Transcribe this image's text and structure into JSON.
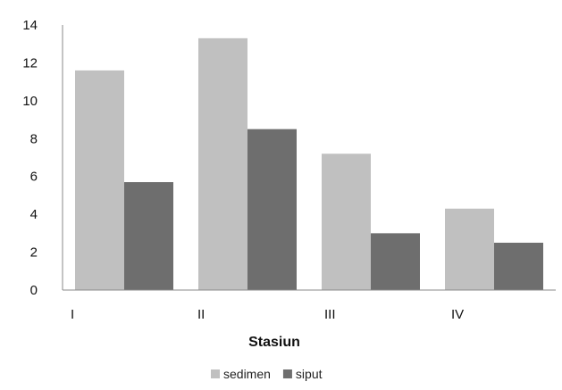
{
  "chart_data": {
    "type": "bar",
    "categories": [
      "I",
      "II",
      "III",
      "IV"
    ],
    "series": [
      {
        "name": "sedimen",
        "values": [
          11.6,
          13.3,
          7.2,
          4.3
        ],
        "color": "#c0c0c0"
      },
      {
        "name": "siput",
        "values": [
          5.7,
          8.5,
          3.0,
          2.5
        ],
        "color": "#6e6e6e"
      }
    ],
    "xlabel": "Stasiun",
    "ylabel": "",
    "ylim": [
      0,
      14
    ],
    "yticks": [
      0,
      2,
      4,
      6,
      8,
      10,
      12,
      14
    ],
    "grid": false,
    "legend_position": "bottom"
  }
}
